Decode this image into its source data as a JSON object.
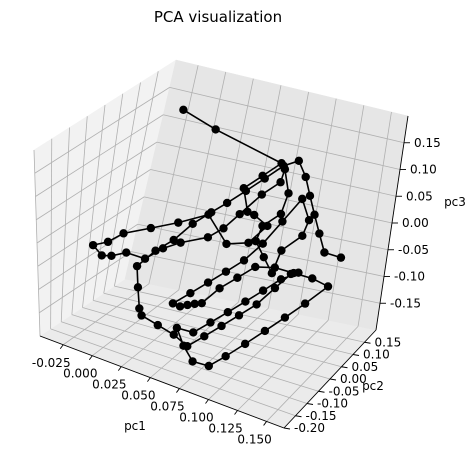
{
  "chart_data": {
    "type": "line3d",
    "title": "PCA visualization",
    "xlabel": "pc1",
    "ylabel": "pc2",
    "zlabel": "pc3",
    "xlim": [
      -0.045,
      0.165
    ],
    "ylim": [
      -0.2,
      0.2
    ],
    "zlim": [
      -0.2,
      0.2
    ],
    "x_ticks": [
      "-0.025",
      "0.000",
      "0.025",
      "0.050",
      "0.075",
      "0.100",
      "0.125",
      "0.150"
    ],
    "y_ticks": [
      "-0.20",
      "-0.15",
      "-0.10",
      "-0.05",
      "0.00",
      "0.05",
      "0.10",
      "0.15"
    ],
    "z_ticks": [
      "-0.15",
      "-0.10",
      "-0.05",
      "0.00",
      "0.05",
      "0.10",
      "0.15"
    ],
    "grid": true,
    "marker": "o",
    "color": "#000000",
    "series": [
      {
        "points": [
          [
            -0.01,
            0.12,
            0.16
          ],
          [
            0.02,
            0.12,
            0.14
          ],
          [
            0.08,
            0.12,
            0.11
          ],
          [
            0.07,
            0.1,
            0.09
          ],
          [
            0.06,
            0.08,
            0.07
          ],
          [
            0.07,
            0.06,
            0.04
          ],
          [
            0.08,
            0.04,
            0.05
          ],
          [
            0.09,
            0.05,
            0.03
          ],
          [
            0.08,
            0.03,
            0.0
          ],
          [
            0.06,
            0.04,
            -0.02
          ],
          [
            0.04,
            0.05,
            0.02
          ],
          [
            0.02,
            0.03,
            0.0
          ],
          [
            0.0,
            0.02,
            -0.02
          ],
          [
            -0.02,
            0.01,
            -0.04
          ],
          [
            -0.03,
            0.0,
            -0.06
          ],
          [
            -0.04,
            -0.01,
            -0.07
          ],
          [
            -0.03,
            -0.02,
            -0.08
          ],
          [
            -0.02,
            -0.03,
            -0.07
          ],
          [
            -0.01,
            -0.02,
            -0.06
          ],
          [
            0.01,
            -0.04,
            -0.05
          ],
          [
            0.02,
            -0.02,
            -0.03
          ],
          [
            0.03,
            0.0,
            -0.02
          ],
          [
            0.05,
            0.01,
            0.0
          ],
          [
            0.06,
            0.02,
            0.02
          ],
          [
            0.07,
            0.03,
            0.05
          ],
          [
            0.08,
            0.06,
            0.08
          ],
          [
            0.09,
            0.08,
            0.1
          ],
          [
            0.09,
            0.09,
            0.12
          ],
          [
            0.1,
            0.07,
            0.09
          ],
          [
            0.1,
            0.05,
            0.06
          ],
          [
            0.09,
            0.03,
            0.04
          ],
          [
            0.09,
            0.01,
            0.02
          ],
          [
            0.1,
            0.0,
            0.0
          ],
          [
            0.11,
            -0.01,
            -0.02
          ],
          [
            0.11,
            0.02,
            0.01
          ],
          [
            0.12,
            0.05,
            0.03
          ],
          [
            0.12,
            0.07,
            0.05
          ],
          [
            0.11,
            0.08,
            0.08
          ],
          [
            0.1,
            0.06,
            0.04
          ],
          [
            0.09,
            0.04,
            0.0
          ],
          [
            0.08,
            0.02,
            -0.03
          ],
          [
            0.07,
            0.0,
            -0.05
          ],
          [
            0.06,
            -0.02,
            -0.07
          ],
          [
            0.05,
            -0.04,
            -0.09
          ],
          [
            0.04,
            -0.06,
            -0.11
          ],
          [
            0.05,
            -0.08,
            -0.1
          ],
          [
            0.06,
            -0.1,
            -0.08
          ],
          [
            0.07,
            -0.12,
            -0.06
          ],
          [
            0.08,
            -0.14,
            -0.04
          ],
          [
            0.09,
            -0.12,
            -0.01
          ],
          [
            0.1,
            -0.1,
            0.01
          ],
          [
            0.11,
            -0.08,
            0.03
          ],
          [
            0.12,
            -0.05,
            0.02
          ],
          [
            0.13,
            -0.02,
            0.0
          ],
          [
            0.14,
            0.01,
            -0.02
          ],
          [
            0.15,
            0.03,
            -0.04
          ],
          [
            0.14,
            -0.01,
            -0.06
          ],
          [
            0.13,
            -0.04,
            -0.08
          ],
          [
            0.12,
            -0.07,
            -0.1
          ],
          [
            0.11,
            -0.1,
            -0.12
          ],
          [
            0.1,
            -0.13,
            -0.14
          ],
          [
            0.09,
            -0.15,
            -0.16
          ],
          [
            0.08,
            -0.17,
            -0.15
          ],
          [
            0.07,
            -0.16,
            -0.13
          ],
          [
            0.06,
            -0.14,
            -0.11
          ],
          [
            0.07,
            -0.12,
            -0.12
          ],
          [
            0.08,
            -0.1,
            -0.1
          ],
          [
            0.09,
            -0.08,
            -0.08
          ],
          [
            0.1,
            -0.06,
            -0.06
          ],
          [
            0.11,
            -0.04,
            -0.04
          ],
          [
            0.12,
            -0.02,
            -0.02
          ],
          [
            0.13,
            0.0,
            -0.01
          ],
          [
            0.12,
            0.02,
            -0.03
          ],
          [
            0.11,
            0.01,
            -0.06
          ],
          [
            0.1,
            -0.01,
            -0.09
          ],
          [
            0.09,
            -0.03,
            -0.11
          ],
          [
            0.08,
            -0.05,
            -0.13
          ],
          [
            0.07,
            -0.07,
            -0.15
          ],
          [
            0.06,
            -0.09,
            -0.17
          ],
          [
            0.05,
            -0.1,
            -0.15
          ],
          [
            0.04,
            -0.12,
            -0.13
          ],
          [
            0.03,
            -0.14,
            -0.11
          ],
          [
            0.02,
            -0.1,
            -0.12
          ],
          [
            0.01,
            -0.06,
            -0.1
          ],
          [
            0.0,
            -0.02,
            -0.08
          ],
          [
            0.01,
            0.0,
            -0.05
          ],
          [
            0.02,
            0.02,
            -0.03
          ],
          [
            0.03,
            0.04,
            0.0
          ],
          [
            0.04,
            0.06,
            0.02
          ],
          [
            0.05,
            0.07,
            0.04
          ],
          [
            0.06,
            0.09,
            0.06
          ],
          [
            0.07,
            0.11,
            0.08
          ],
          [
            0.08,
            0.13,
            0.1
          ],
          [
            0.09,
            0.14,
            0.11
          ],
          [
            0.1,
            0.13,
            0.09
          ],
          [
            0.11,
            0.11,
            0.07
          ],
          [
            0.12,
            0.09,
            0.05
          ],
          [
            0.13,
            0.07,
            0.03
          ],
          [
            0.14,
            0.05,
            0.01
          ],
          [
            0.16,
            0.02,
            0.03
          ]
        ]
      }
    ]
  }
}
